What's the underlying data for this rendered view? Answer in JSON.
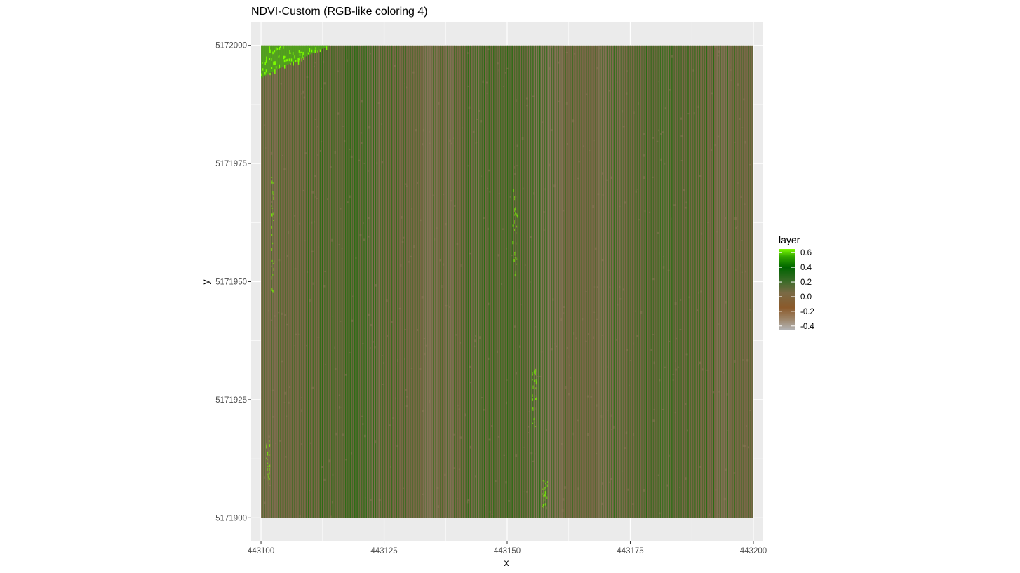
{
  "chart_data": {
    "type": "heatmap",
    "title": "NDVI-Custom (RGB-like coloring 4)",
    "xlabel": "x",
    "ylabel": "y",
    "xlim": [
      443098,
      443202
    ],
    "ylim": [
      5171895,
      5172005
    ],
    "raster_extent": {
      "x": [
        443100,
        443200
      ],
      "y": [
        5171900,
        5172000
      ]
    },
    "x_ticks": [
      443100,
      443125,
      443150,
      443175,
      443200
    ],
    "x_tick_labels": [
      "443100",
      "443125",
      "443150",
      "443175",
      "443200"
    ],
    "y_ticks": [
      5171900,
      5171925,
      5171950,
      5171975,
      5172000
    ],
    "y_tick_labels": [
      "5171900",
      "5171925",
      "5171950",
      "5171975",
      "5172000"
    ],
    "grid": true,
    "panel_background": "#ebebeb",
    "legend": {
      "title": "layer",
      "placement": "right",
      "value_range": [
        -0.45,
        0.65
      ],
      "breaks": [
        -0.4,
        -0.2,
        0.0,
        0.2,
        0.4,
        0.6
      ],
      "break_labels": [
        "-0.4",
        "-0.2",
        "0.0",
        "0.2",
        "0.4",
        "0.6"
      ],
      "colors": [
        {
          "value": -0.45,
          "color": "#b3b3b3"
        },
        {
          "value": -0.3,
          "color": "#9c8366"
        },
        {
          "value": -0.15,
          "color": "#8b5a2b"
        },
        {
          "value": 0.05,
          "color": "#7a6a45"
        },
        {
          "value": 0.2,
          "color": "#3f6b2a"
        },
        {
          "value": 0.4,
          "color": "#006400"
        },
        {
          "value": 0.55,
          "color": "#33a800"
        },
        {
          "value": 0.65,
          "color": "#7cfc00"
        }
      ]
    },
    "dominant_colors": [
      "#7a6848",
      "#3c6a22",
      "#1f6d0d",
      "#7cfc00"
    ]
  }
}
